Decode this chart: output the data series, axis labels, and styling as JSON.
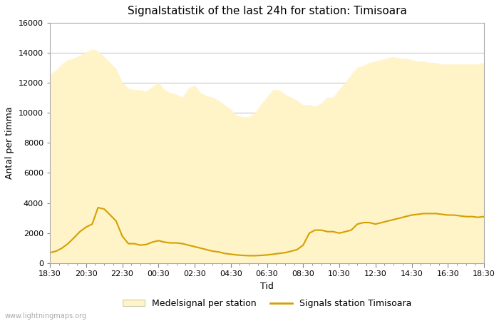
{
  "title": "Signalstatistik of the last 24h for station: Timisoara",
  "xlabel": "Tid",
  "ylabel": "Antal per timma",
  "ylim": [
    0,
    16000
  ],
  "yticks": [
    0,
    2000,
    4000,
    6000,
    8000,
    10000,
    12000,
    14000,
    16000
  ],
  "xtick_labels": [
    "18:30",
    "20:30",
    "22:30",
    "00:30",
    "02:30",
    "04:30",
    "06:30",
    "08:30",
    "10:30",
    "12:30",
    "14:30",
    "16:30",
    "18:30"
  ],
  "fill_color": "#FFF3C8",
  "fill_edge_color": "#FFF3C8",
  "line_color": "#D4A000",
  "background_color": "#ffffff",
  "grid_color": "#c8c8c8",
  "watermark": "www.lightningmaps.org",
  "legend_fill_label": "Medelsignal per station",
  "legend_line_label": "Signals station Timisoara",
  "area_x": [
    0.0,
    0.17,
    0.33,
    0.5,
    0.67,
    0.83,
    1.0,
    1.17,
    1.33,
    1.5,
    1.67,
    1.83,
    2.0,
    2.17,
    2.33,
    2.5,
    2.67,
    2.83,
    3.0,
    3.17,
    3.33,
    3.5,
    3.67,
    3.83,
    4.0,
    4.17,
    4.33,
    4.5,
    4.67,
    4.83,
    5.0,
    5.17,
    5.33,
    5.5,
    5.67,
    5.83,
    6.0,
    6.17,
    6.33,
    6.5,
    6.67,
    6.83,
    7.0,
    7.17,
    7.33,
    7.5,
    7.67,
    7.83,
    8.0,
    8.17,
    8.33,
    8.5,
    8.67,
    8.83,
    9.0,
    9.17,
    9.33,
    9.5,
    9.67,
    9.83,
    10.0,
    10.17,
    10.33,
    10.5,
    10.67,
    10.83,
    11.0,
    11.17,
    11.33,
    11.5,
    11.67,
    11.83,
    12.0
  ],
  "area_values": [
    12500,
    12800,
    13200,
    13500,
    13600,
    13800,
    14000,
    14200,
    14100,
    13700,
    13300,
    12900,
    12000,
    11600,
    11500,
    11500,
    11400,
    11700,
    12000,
    11500,
    11300,
    11200,
    11000,
    11600,
    11800,
    11300,
    11100,
    11000,
    10800,
    10500,
    10200,
    9800,
    9700,
    9700,
    10000,
    10500,
    11000,
    11500,
    11500,
    11200,
    11000,
    10800,
    10500,
    10500,
    10400,
    10600,
    11000,
    11000,
    11500,
    12000,
    12500,
    13000,
    13100,
    13300,
    13400,
    13500,
    13600,
    13700,
    13600,
    13600,
    13500,
    13400,
    13400,
    13300,
    13300,
    13200,
    13200,
    13200,
    13200,
    13200,
    13200,
    13200,
    13300
  ],
  "line_x": [
    0.0,
    0.17,
    0.33,
    0.5,
    0.67,
    0.83,
    1.0,
    1.17,
    1.33,
    1.5,
    1.67,
    1.83,
    2.0,
    2.17,
    2.33,
    2.5,
    2.67,
    2.83,
    3.0,
    3.17,
    3.33,
    3.5,
    3.67,
    3.83,
    4.0,
    4.17,
    4.33,
    4.5,
    4.67,
    4.83,
    5.0,
    5.17,
    5.33,
    5.5,
    5.67,
    5.83,
    6.0,
    6.17,
    6.33,
    6.5,
    6.67,
    6.83,
    7.0,
    7.17,
    7.33,
    7.5,
    7.67,
    7.83,
    8.0,
    8.17,
    8.33,
    8.5,
    8.67,
    8.83,
    9.0,
    9.17,
    9.33,
    9.5,
    9.67,
    9.83,
    10.0,
    10.17,
    10.33,
    10.5,
    10.67,
    10.83,
    11.0,
    11.17,
    11.33,
    11.5,
    11.67,
    11.83,
    12.0
  ],
  "line_values": [
    700,
    800,
    1000,
    1300,
    1700,
    2100,
    2400,
    2600,
    3700,
    3600,
    3200,
    2800,
    1800,
    1300,
    1300,
    1200,
    1250,
    1400,
    1500,
    1400,
    1350,
    1350,
    1300,
    1200,
    1100,
    1000,
    900,
    800,
    750,
    650,
    600,
    550,
    520,
    500,
    500,
    520,
    550,
    600,
    650,
    700,
    800,
    900,
    1200,
    2000,
    2200,
    2200,
    2100,
    2100,
    2000,
    2100,
    2200,
    2600,
    2700,
    2700,
    2600,
    2700,
    2800,
    2900,
    3000,
    3100,
    3200,
    3250,
    3300,
    3300,
    3300,
    3250,
    3200,
    3200,
    3150,
    3100,
    3100,
    3050,
    3100
  ]
}
